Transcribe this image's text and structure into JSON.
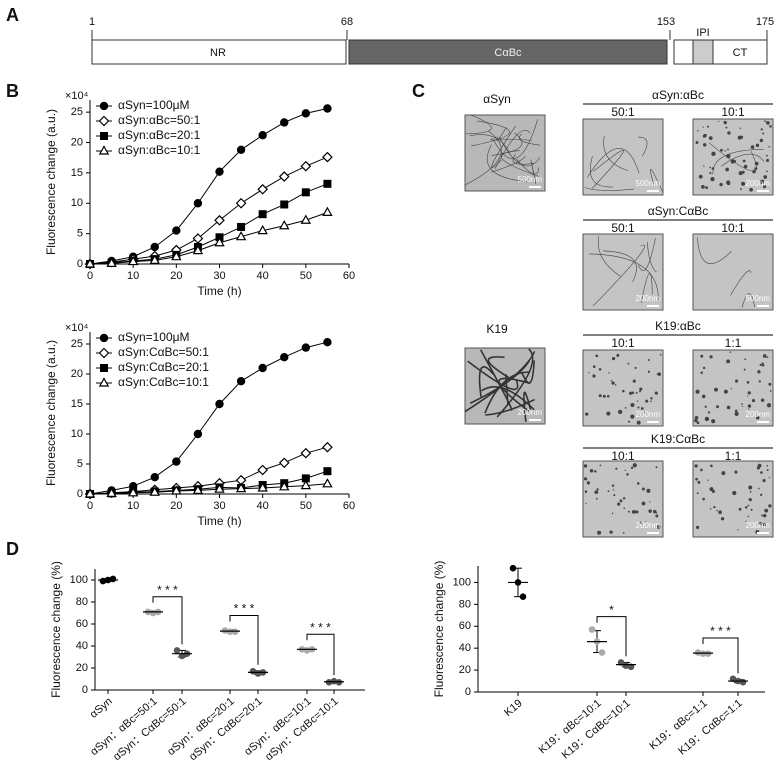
{
  "panel_labels": [
    "A",
    "B",
    "C",
    "D"
  ],
  "domain_map": {
    "residues": [
      1,
      68,
      153,
      175
    ],
    "domains": [
      "NR",
      "CαBc",
      "IPI",
      "CT"
    ]
  },
  "chart_data": [
    {
      "type": "line",
      "y_multiplier": "×10⁴",
      "xlabel": "Time (h)",
      "ylabel": "Fluorescence change (a.u.)",
      "x": [
        0,
        5,
        10,
        15,
        20,
        25,
        30,
        35,
        40,
        45,
        50,
        55
      ],
      "xlim": [
        0,
        60
      ],
      "xticks": [
        0,
        10,
        20,
        30,
        40,
        50,
        60
      ],
      "ylim": [
        0,
        27
      ],
      "yticks": [
        0,
        5,
        10,
        15,
        20,
        25
      ],
      "legend": "upper left",
      "series": [
        {
          "name": "αSyn=100μM",
          "color": "#000000",
          "marker": "circle",
          "values": [
            0,
            0.5,
            1.2,
            2.8,
            5.5,
            10,
            15.2,
            18.8,
            21.2,
            23.3,
            24.8,
            25.6
          ]
        },
        {
          "name": "αSyn:αBc=50:1",
          "color": "#000000",
          "marker": "open-diamond",
          "values": [
            0,
            0.3,
            0.8,
            1.3,
            2.3,
            4.2,
            7.2,
            10,
            12.3,
            14.4,
            16.1,
            17.6
          ]
        },
        {
          "name": "αSyn:αBc=20:1",
          "color": "#000000",
          "marker": "square",
          "values": [
            0,
            0.2,
            0.5,
            0.8,
            1.5,
            2.8,
            4.4,
            6.1,
            8.2,
            9.8,
            11.8,
            13.2
          ]
        },
        {
          "name": "αSyn:αBc=10:1",
          "color": "#000000",
          "marker": "open-triangle",
          "values": [
            0,
            0.1,
            0.4,
            0.6,
            1.2,
            2.2,
            3.5,
            4.5,
            5.5,
            6.3,
            7.2,
            8.5
          ]
        }
      ]
    },
    {
      "type": "line",
      "y_multiplier": "×10⁴",
      "xlabel": "Time (h)",
      "ylabel": "Fluorescence change (a.u.)",
      "x": [
        0,
        5,
        10,
        15,
        20,
        25,
        30,
        35,
        40,
        45,
        50,
        55
      ],
      "xlim": [
        0,
        60
      ],
      "xticks": [
        0,
        10,
        20,
        30,
        40,
        50,
        60
      ],
      "ylim": [
        0,
        27
      ],
      "yticks": [
        0,
        5,
        10,
        15,
        20,
        25
      ],
      "legend": "upper left",
      "series": [
        {
          "name": "αSyn=100μM",
          "color": "#000000",
          "marker": "circle",
          "values": [
            0,
            0.6,
            1.3,
            2.8,
            5.4,
            10,
            15,
            18.8,
            21,
            22.8,
            24.4,
            25.3
          ]
        },
        {
          "name": "αSyn:CαBc=50:1",
          "color": "#000000",
          "marker": "open-diamond",
          "values": [
            0,
            0.2,
            0.4,
            0.7,
            1,
            1.3,
            1.8,
            2.3,
            4,
            5.2,
            6.8,
            7.8
          ]
        },
        {
          "name": "αSyn:CαBc=20:1",
          "color": "#000000",
          "marker": "square",
          "values": [
            0,
            0.1,
            0.3,
            0.4,
            0.6,
            0.8,
            1.1,
            1,
            1.5,
            1.8,
            2.6,
            3.8
          ]
        },
        {
          "name": "αSyn:CαBc=10:1",
          "color": "#000000",
          "marker": "open-triangle",
          "values": [
            0,
            0.1,
            0.2,
            0.3,
            0.5,
            0.6,
            0.8,
            0.9,
            1,
            1.2,
            1.4,
            1.7
          ]
        }
      ]
    },
    {
      "type": "dot",
      "ylabel": "Fluorescence change (%)",
      "ylim": [
        0,
        110
      ],
      "yticks": [
        0,
        20,
        40,
        60,
        80,
        100
      ],
      "categories": [
        "αSyn",
        "αSyn：αBc=50:1",
        "αSyn：CαBc=50:1",
        "αSyn：αBc=20:1",
        "αSyn：CαBc=20:1",
        "αSyn：αBc=10:1",
        "αSyn：CαBc=10:1"
      ],
      "colors": [
        "#000000",
        "#aaaaaa",
        "#555555",
        "#aaaaaa",
        "#555555",
        "#aaaaaa",
        "#555555"
      ],
      "values": [
        [
          99,
          100,
          101
        ],
        [
          71,
          70,
          71
        ],
        [
          36,
          31,
          33
        ],
        [
          54,
          53,
          53
        ],
        [
          17,
          15,
          16
        ],
        [
          37,
          36,
          37
        ],
        [
          7,
          8,
          7
        ]
      ],
      "means": [
        100,
        71,
        33,
        53.5,
        16,
        37,
        7.5
      ],
      "errors": [
        1,
        1,
        3,
        1.5,
        1.5,
        1,
        0.5
      ],
      "significance": [
        "* * *",
        "* * *",
        "* * *"
      ]
    },
    {
      "type": "dot",
      "ylabel": "Fluorescence change (%)",
      "ylim": [
        0,
        115
      ],
      "yticks": [
        0,
        20,
        40,
        60,
        80,
        100
      ],
      "categories": [
        "K19",
        "K19：αBc=10:1",
        "K19：CαBc=10:1",
        "K19：αBc=1:1",
        "K19：CαBc=1:1"
      ],
      "colors": [
        "#000000",
        "#aaaaaa",
        "#555555",
        "#aaaaaa",
        "#555555"
      ],
      "values": [
        [
          113,
          100,
          87
        ],
        [
          57,
          46,
          36
        ],
        [
          27,
          24,
          23
        ],
        [
          36,
          35,
          35
        ],
        [
          12,
          10,
          9
        ]
      ],
      "means": [
        100,
        46,
        25,
        35.5,
        10
      ],
      "errors": [
        13,
        10,
        2,
        1,
        1.5
      ],
      "significance": [
        "*",
        "* * *"
      ]
    }
  ],
  "micrographs": [
    {
      "title": "αSyn",
      "images": [
        {
          "scale": "500nm"
        }
      ]
    },
    {
      "title": "αSyn:αBc",
      "images": [
        {
          "ratio": "50:1",
          "scale": "500nm"
        },
        {
          "ratio": "10:1",
          "scale": "200nm"
        }
      ]
    },
    {
      "title": "αSyn:CαBc",
      "images": [
        {
          "ratio": "50:1",
          "scale": "200nm"
        },
        {
          "ratio": "10:1",
          "scale": "500nm"
        }
      ]
    },
    {
      "title": "K19",
      "images": [
        {
          "scale": "200nm"
        }
      ]
    },
    {
      "title": "K19:αBc",
      "images": [
        {
          "ratio": "10:1",
          "scale": "200nm"
        },
        {
          "ratio": "1:1",
          "scale": "200nm"
        }
      ]
    },
    {
      "title": "K19:CαBc",
      "images": [
        {
          "ratio": "10:1",
          "scale": "200nm"
        },
        {
          "ratio": "1:1",
          "scale": "200nm"
        }
      ]
    }
  ]
}
